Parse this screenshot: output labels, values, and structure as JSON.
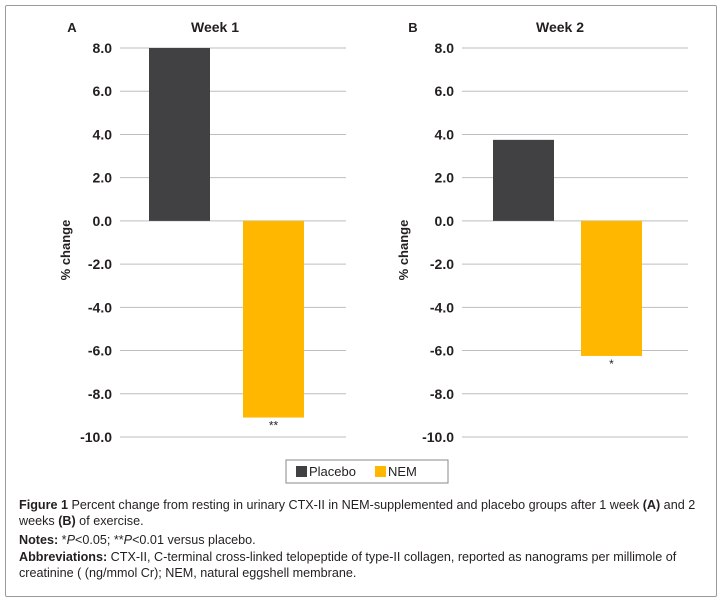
{
  "chart_data": [
    {
      "type": "bar",
      "panel_label": "A",
      "title": "Week 1",
      "ylabel": "% change",
      "ylim": [
        -10,
        8
      ],
      "yticks": [
        8,
        6,
        4,
        2,
        0,
        -2,
        -4,
        -6,
        -8,
        -10
      ],
      "ytick_labels": [
        "8.0",
        "6.0",
        "4.0",
        "2.0",
        "0.0",
        "-2.0",
        "-4.0",
        "-6.0",
        "-8.0",
        "-10.0"
      ],
      "grid": true,
      "series": [
        {
          "name": "Placebo",
          "color": "#414042",
          "value": 8.0,
          "annotation": ""
        },
        {
          "name": "NEM",
          "color": "#ffb700",
          "value": -9.1,
          "annotation": "**"
        }
      ]
    },
    {
      "type": "bar",
      "panel_label": "B",
      "title": "Week 2",
      "ylabel": "% change",
      "ylim": [
        -10,
        8
      ],
      "yticks": [
        8,
        6,
        4,
        2,
        0,
        -2,
        -4,
        -6,
        -8,
        -10
      ],
      "ytick_labels": [
        "8.0",
        "6.0",
        "4.0",
        "2.0",
        "0.0",
        "-2.0",
        "-4.0",
        "-6.0",
        "-8.0",
        "-10.0"
      ],
      "grid": true,
      "series": [
        {
          "name": "Placebo",
          "color": "#414042",
          "value": 3.75,
          "annotation": ""
        },
        {
          "name": "NEM",
          "color": "#ffb700",
          "value": -6.25,
          "annotation": "*"
        }
      ]
    }
  ],
  "legend": {
    "placement": "bottom-center",
    "items": [
      {
        "label": "Placebo",
        "color": "#414042"
      },
      {
        "label": "NEM",
        "color": "#ffb700"
      }
    ]
  },
  "caption": {
    "figure_label": "Figure 1",
    "figure_text_1": " Percent change from resting in urinary CTX-II in NEM-supplemented and placebo groups after 1 week ",
    "figure_a": "(A)",
    "figure_text_2": " and 2 weeks ",
    "figure_b": "(B)",
    "figure_text_3": " of exercise.",
    "notes_label": "Notes:",
    "notes_1": " *",
    "notes_p1": "P",
    "notes_2": "<0.05; **",
    "notes_p2": "P",
    "notes_3": "<0.01 versus placebo.",
    "abbr_label": "Abbreviations:",
    "abbr_text": " CTX-II, C-terminal cross-linked telopeptide of type-II collagen, reported as nanograms per millimole of creatinine ( (ng/mmol Cr); NEM, natural eggshell membrane."
  }
}
